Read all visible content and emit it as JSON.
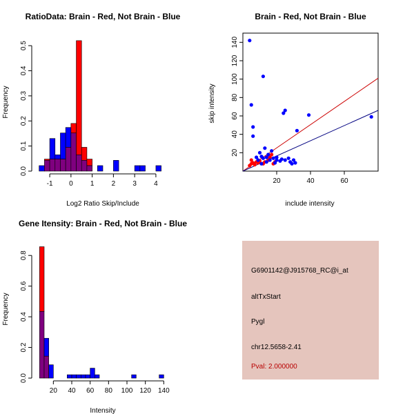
{
  "colors": {
    "red": "#ff0000",
    "blue": "#0000ff",
    "overlap": "#7f007f",
    "red_line": "#cc0000",
    "blue_line": "#000080",
    "panel_bg": "#e5c5bd",
    "pval_text": "#b80000"
  },
  "chart_data": [
    {
      "type": "histogram",
      "title": "RatioData: Brain - Red, Not Brain - Blue",
      "xlabel": "Log2 Ratio Skip/Include",
      "ylabel": "Frequency",
      "xlim": [
        -1.75,
        4.75
      ],
      "ylim": [
        0,
        0.55
      ],
      "xticks": [
        -1,
        0,
        1,
        2,
        3,
        4
      ],
      "yticks": [
        0.0,
        0.1,
        0.2,
        0.3,
        0.4,
        0.5
      ],
      "bin_width": 0.25,
      "bins_start": -1.5,
      "series": [
        {
          "name": "Brain",
          "color": "red",
          "values": [
            0,
            0.048,
            0.048,
            0.048,
            0.048,
            0.095,
            0.19,
            0.52,
            0.095,
            0.048,
            0,
            0,
            0,
            0,
            0,
            0,
            0,
            0,
            0,
            0,
            0,
            0,
            0,
            0
          ]
        },
        {
          "name": "Not Brain",
          "color": "blue",
          "values": [
            0.022,
            0.043,
            0.13,
            0.065,
            0.152,
            0.174,
            0.152,
            0.065,
            0.043,
            0.022,
            0,
            0.022,
            0,
            0,
            0.043,
            0,
            0,
            0,
            0.022,
            0.022,
            0,
            0,
            0.022,
            0
          ]
        }
      ]
    },
    {
      "type": "scatter",
      "title": "Brain - Red, Not Brain - Blue",
      "xlabel": "include intensity",
      "ylabel": "skip intensity",
      "xlim": [
        0,
        80
      ],
      "ylim": [
        0,
        150
      ],
      "xticks": [
        20,
        40,
        60
      ],
      "yticks": [
        20,
        40,
        60,
        80,
        100,
        120,
        140
      ],
      "series": [
        {
          "name": "Brain",
          "color": "red",
          "points": [
            [
              4,
              6
            ],
            [
              5,
              8
            ],
            [
              5,
              12
            ],
            [
              6,
              9
            ],
            [
              7,
              7
            ],
            [
              8,
              10
            ],
            [
              9,
              9
            ],
            [
              10,
              11
            ],
            [
              12,
              8
            ],
            [
              13,
              10
            ],
            [
              15,
              12
            ],
            [
              16,
              15
            ],
            [
              17,
              18
            ],
            [
              18,
              8
            ],
            [
              19,
              10
            ]
          ]
        },
        {
          "name": "Not Brain",
          "color": "blue",
          "points": [
            [
              4,
              142
            ],
            [
              5,
              72
            ],
            [
              6,
              48
            ],
            [
              12,
              103
            ],
            [
              6,
              38
            ],
            [
              24,
              63
            ],
            [
              25,
              66
            ],
            [
              32,
              44
            ],
            [
              39,
              61
            ],
            [
              76,
              59
            ],
            [
              8,
              15
            ],
            [
              9,
              12
            ],
            [
              10,
              20
            ],
            [
              11,
              8
            ],
            [
              12,
              14
            ],
            [
              13,
              25
            ],
            [
              14,
              10
            ],
            [
              15,
              18
            ],
            [
              16,
              12
            ],
            [
              17,
              22
            ],
            [
              18,
              14
            ],
            [
              19,
              9
            ],
            [
              20,
              15
            ],
            [
              22,
              11
            ],
            [
              23,
              13
            ],
            [
              25,
              12
            ],
            [
              27,
              14
            ],
            [
              28,
              10
            ],
            [
              29,
              8
            ],
            [
              30,
              12
            ],
            [
              31,
              9
            ],
            [
              11,
              16
            ],
            [
              14,
              15
            ],
            [
              20,
              12
            ]
          ]
        }
      ],
      "fit_lines": [
        {
          "name": "Brain fit",
          "color": "red_line",
          "from": [
            0,
            0
          ],
          "to": [
            80,
            101
          ]
        },
        {
          "name": "Not Brain fit",
          "color": "blue_line",
          "from": [
            0,
            0
          ],
          "to": [
            80,
            66
          ]
        }
      ]
    },
    {
      "type": "histogram",
      "title": "Gene Itensity: Brain - Red, Not Brain - Blue",
      "xlabel": "Intensity",
      "ylabel": "Frequency",
      "xlim": [
        -2,
        148
      ],
      "ylim": [
        0,
        0.9
      ],
      "xticks": [
        20,
        40,
        60,
        80,
        100,
        120,
        140
      ],
      "yticks": [
        0.0,
        0.2,
        0.4,
        0.6,
        0.8
      ],
      "bin_width": 5,
      "bins_start": 5,
      "series": [
        {
          "name": "Brain",
          "color": "red",
          "values": [
            0.857,
            0.143,
            0,
            0,
            0,
            0,
            0,
            0,
            0,
            0,
            0,
            0,
            0,
            0,
            0,
            0,
            0,
            0,
            0,
            0,
            0,
            0,
            0,
            0,
            0,
            0,
            0
          ]
        },
        {
          "name": "Not Brain",
          "color": "blue",
          "values": [
            0.435,
            0.26,
            0.087,
            0,
            0,
            0,
            0.022,
            0.022,
            0.022,
            0.022,
            0.022,
            0.065,
            0.022,
            0,
            0,
            0,
            0,
            0,
            0,
            0,
            0.022,
            0,
            0,
            0,
            0,
            0,
            0.022
          ]
        }
      ]
    }
  ],
  "info_panel": {
    "probe_id": "G6901142@J915768_RC@i_at",
    "event_type": "altTxStart",
    "gene": "Pygl",
    "location": "chr12.5658-2.41",
    "pval": "Pval: 2.000000"
  }
}
